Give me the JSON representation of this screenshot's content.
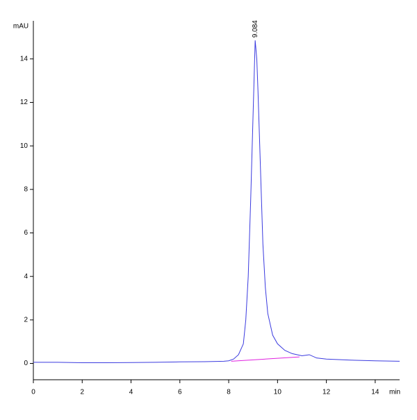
{
  "chart_data": {
    "type": "line",
    "y_label": "mAU",
    "x_label": "min",
    "annotation": {
      "text": "9.084",
      "x": 9.084,
      "y": 14.85
    },
    "xlim": [
      0,
      15
    ],
    "xticks": [
      0,
      2,
      4,
      6,
      8,
      10,
      12,
      14
    ],
    "ylim": [
      -0.75,
      15.75
    ],
    "yticks": [
      0,
      2,
      4,
      6,
      8,
      10,
      12,
      14
    ],
    "series": [
      {
        "color": "#3a3adf",
        "x": [
          0,
          1,
          2,
          3,
          4,
          5,
          6,
          7,
          7.5,
          7.8,
          8,
          8.2,
          8.4,
          8.6,
          8.7,
          8.8,
          8.9,
          9.0,
          9.084,
          9.15,
          9.2,
          9.3,
          9.4,
          9.5,
          9.6,
          9.8,
          10,
          10.3,
          10.6,
          11,
          11.3,
          11.6,
          12,
          13,
          14,
          15
        ],
        "values": [
          0.05,
          0.05,
          0.03,
          0.03,
          0.04,
          0.05,
          0.07,
          0.08,
          0.09,
          0.1,
          0.12,
          0.2,
          0.4,
          0.9,
          2,
          4,
          7.5,
          11.5,
          14.85,
          14,
          12.5,
          9,
          5.5,
          3.5,
          2.3,
          1.3,
          0.9,
          0.6,
          0.45,
          0.35,
          0.4,
          0.25,
          0.2,
          0.15,
          0.12,
          0.1
        ]
      },
      {
        "color": "#e020e0",
        "x": [
          8.1,
          10.9
        ],
        "values": [
          0.1,
          0.3
        ]
      }
    ]
  }
}
